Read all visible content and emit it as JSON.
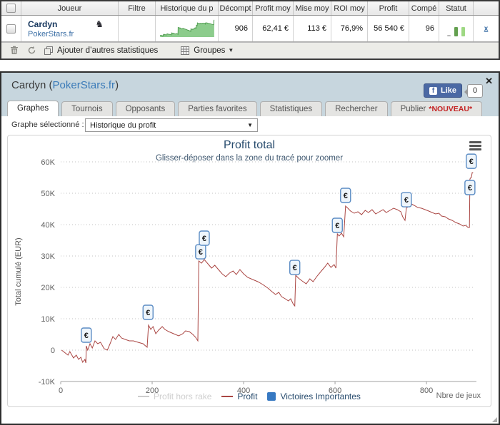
{
  "top_panel": {
    "columns": [
      "Joueur",
      "Filtre",
      "Historique du p",
      "Décompt",
      "Profit moy",
      "Mise moy",
      "ROI moy",
      "Profit",
      "Compé",
      "Statut"
    ],
    "player": {
      "name": "Cardyn",
      "site": "PokerStars.fr",
      "icon": "knight"
    },
    "row": {
      "count": "906",
      "profit_avg": "62,41 €",
      "stake_avg": "113 €",
      "roi_avg": "76,9%",
      "profit": "56 540 €",
      "compe": "96",
      "close_link": "x"
    },
    "status_bars": [
      {
        "color": "#b9b9b9",
        "h": 2
      },
      {
        "color": "#63a04f",
        "h": 13
      },
      {
        "color": "#9ed883",
        "h": 13
      }
    ],
    "sparkline_colors": {
      "stroke": "#55a055",
      "fill": "#8ccc8c"
    },
    "toolbar": {
      "add_stats": "Ajouter d’autres statistiques",
      "groups": "Groupes"
    }
  },
  "panel": {
    "title_pre": "Cardyn (",
    "title_site": "PokerStars.fr",
    "title_post": ")",
    "close_glyph": "✕",
    "like_label": "Like",
    "like_count": "0",
    "fb_letter": "f",
    "tabs": [
      {
        "label": "Graphes"
      },
      {
        "label": "Tournois"
      },
      {
        "label": "Opposants"
      },
      {
        "label": "Parties favorites"
      },
      {
        "label": "Statistiques"
      },
      {
        "label": "Rechercher"
      },
      {
        "label": "Publier",
        "badge": "*NOUVEAU*"
      }
    ],
    "selector_label": "Graphe sélectionné :",
    "selector_value": "Historique du profit"
  },
  "chart_data": {
    "type": "line",
    "title": "Profit total",
    "subtitle": "Glisser-déposer dans la zone du tracé pour zoomer",
    "ylabel": "Total cumulé (EUR)",
    "xlabel": "Nbre de jeux",
    "xlim": [
      0,
      903
    ],
    "ylim": [
      -10000,
      60000
    ],
    "grid": "dotted",
    "legend_position": "bottom",
    "yticks": [
      {
        "v": 60000,
        "label": "60K"
      },
      {
        "v": 50000,
        "label": "50K"
      },
      {
        "v": 40000,
        "label": "40K"
      },
      {
        "v": 30000,
        "label": "30K"
      },
      {
        "v": 20000,
        "label": "20K"
      },
      {
        "v": 10000,
        "label": "10K"
      },
      {
        "v": 0,
        "label": "0"
      },
      {
        "v": -10000,
        "label": "-10K"
      }
    ],
    "xticks": [
      {
        "v": 0,
        "label": "0"
      },
      {
        "v": 200,
        "label": "200"
      },
      {
        "v": 400,
        "label": "400"
      },
      {
        "v": 600,
        "label": "600"
      },
      {
        "v": 800,
        "label": "800"
      }
    ],
    "series": [
      {
        "name": "Profit hors rake",
        "type": "line",
        "color": "#cccccc",
        "visible": false,
        "points": []
      },
      {
        "name": "Profit",
        "type": "line",
        "color": "#AA4643",
        "visible": true,
        "points": [
          [
            2,
            0
          ],
          [
            8,
            -680
          ],
          [
            16,
            -1590
          ],
          [
            20,
            -450
          ],
          [
            28,
            -2500
          ],
          [
            34,
            -1590
          ],
          [
            39,
            -2950
          ],
          [
            44,
            -2270
          ],
          [
            48,
            -3860
          ],
          [
            53,
            -2950
          ],
          [
            55,
            -4090
          ],
          [
            56,
            1360
          ],
          [
            59,
            0
          ],
          [
            64,
            2045
          ],
          [
            69,
            680
          ],
          [
            75,
            2950
          ],
          [
            81,
            2045
          ],
          [
            87,
            2500
          ],
          [
            95,
            450
          ],
          [
            102,
            0
          ],
          [
            108,
            2045
          ],
          [
            114,
            4320
          ],
          [
            120,
            3410
          ],
          [
            127,
            5000
          ],
          [
            133,
            3860
          ],
          [
            141,
            3410
          ],
          [
            150,
            2950
          ],
          [
            159,
            2950
          ],
          [
            169,
            2500
          ],
          [
            180,
            2045
          ],
          [
            189,
            910
          ],
          [
            192,
            7950
          ],
          [
            197,
            6590
          ],
          [
            202,
            7500
          ],
          [
            208,
            5230
          ],
          [
            214,
            6360
          ],
          [
            222,
            7500
          ],
          [
            228,
            6590
          ],
          [
            236,
            5910
          ],
          [
            247,
            5230
          ],
          [
            258,
            4545
          ],
          [
            267,
            5230
          ],
          [
            273,
            6140
          ],
          [
            281,
            5910
          ],
          [
            289,
            5000
          ],
          [
            295,
            4090
          ],
          [
            300,
            2950
          ],
          [
            302,
            28400
          ],
          [
            308,
            27730
          ],
          [
            314,
            28860
          ],
          [
            322,
            27500
          ],
          [
            330,
            26140
          ],
          [
            337,
            27045
          ],
          [
            345,
            25680
          ],
          [
            353,
            24320
          ],
          [
            361,
            23410
          ],
          [
            369,
            24545
          ],
          [
            377,
            25230
          ],
          [
            384,
            24090
          ],
          [
            392,
            25680
          ],
          [
            400,
            24320
          ],
          [
            409,
            23180
          ],
          [
            420,
            22500
          ],
          [
            431,
            21820
          ],
          [
            442,
            20900
          ],
          [
            453,
            19770
          ],
          [
            462,
            18640
          ],
          [
            470,
            17730
          ],
          [
            477,
            18410
          ],
          [
            483,
            17045
          ],
          [
            491,
            16360
          ],
          [
            498,
            15680
          ],
          [
            503,
            16360
          ],
          [
            509,
            14545
          ],
          [
            512,
            14090
          ],
          [
            514,
            23860
          ],
          [
            520,
            22950
          ],
          [
            528,
            22045
          ],
          [
            537,
            21140
          ],
          [
            545,
            22730
          ],
          [
            552,
            21820
          ],
          [
            561,
            23640
          ],
          [
            570,
            25230
          ],
          [
            578,
            26590
          ],
          [
            584,
            27730
          ],
          [
            591,
            26360
          ],
          [
            598,
            27270
          ],
          [
            602,
            26140
          ],
          [
            605,
            37045
          ],
          [
            609,
            36360
          ],
          [
            614,
            37270
          ],
          [
            619,
            36140
          ],
          [
            623,
            45910
          ],
          [
            628,
            45230
          ],
          [
            634,
            44320
          ],
          [
            642,
            43640
          ],
          [
            650,
            44090
          ],
          [
            658,
            43180
          ],
          [
            666,
            44545
          ],
          [
            673,
            43860
          ],
          [
            681,
            44770
          ],
          [
            689,
            43410
          ],
          [
            697,
            44090
          ],
          [
            705,
            44770
          ],
          [
            712,
            43860
          ],
          [
            720,
            44545
          ],
          [
            728,
            45230
          ],
          [
            736,
            44770
          ],
          [
            744,
            44090
          ],
          [
            748,
            42500
          ],
          [
            753,
            41360
          ],
          [
            756,
            45230
          ],
          [
            761,
            45910
          ],
          [
            767,
            46590
          ],
          [
            773,
            46140
          ],
          [
            781,
            45455
          ],
          [
            789,
            45230
          ],
          [
            797,
            44770
          ],
          [
            805,
            44320
          ],
          [
            812,
            43860
          ],
          [
            820,
            43410
          ],
          [
            827,
            43640
          ],
          [
            833,
            42730
          ],
          [
            841,
            42500
          ],
          [
            848,
            41820
          ],
          [
            856,
            41360
          ],
          [
            864,
            40680
          ],
          [
            872,
            40230
          ],
          [
            880,
            39545
          ],
          [
            886,
            39770
          ],
          [
            891,
            39090
          ],
          [
            894,
            39090
          ],
          [
            895,
            54545
          ],
          [
            897,
            55000
          ],
          [
            898,
            55000
          ],
          [
            900,
            56590
          ],
          [
            902,
            56540
          ]
        ]
      },
      {
        "name": "Victoires Importantes",
        "type": "scatter",
        "color": "#3779c2",
        "symbol": "€",
        "marker": {
          "border": "#5b8cc4",
          "fill": "#eef5fb",
          "text_color": "#1a1a1a"
        },
        "points": [
          [
            56,
            4770
          ],
          [
            191,
            12045
          ],
          [
            306,
            31360
          ],
          [
            314,
            35680
          ],
          [
            512,
            26360
          ],
          [
            605,
            39770
          ],
          [
            623,
            49320
          ],
          [
            756,
            47950
          ],
          [
            895,
            51820
          ],
          [
            898,
            60200
          ]
        ]
      }
    ]
  }
}
